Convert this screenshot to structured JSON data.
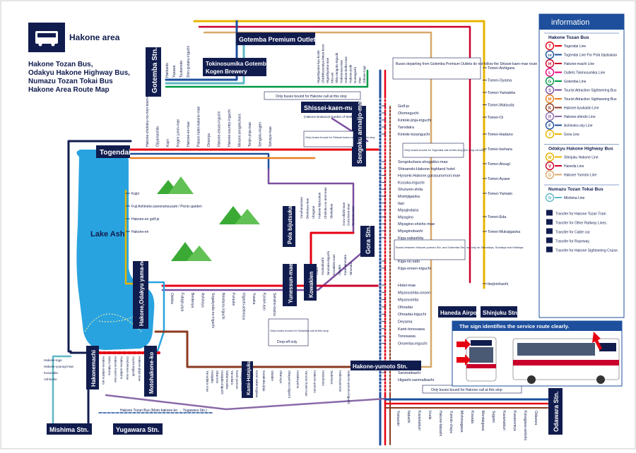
{
  "header": {
    "area_title": "Hakone area",
    "operators": [
      "Hakone Tozan Bus,",
      "Odakyu Hakone Highway Bus,",
      "Numazu Tozan Tokai Bus"
    ],
    "map_title": "Hakone Area Route Map",
    "bus_icon": "bus-icon"
  },
  "hubs": {
    "gotemba": "Gotemba Stn.",
    "premium_outlets": "Gotemba Premium Outlets",
    "tokinosumika": [
      "Tokinosumika Gotemba",
      "Kogen Brewery"
    ],
    "shissei": "Shissei-kaen-mae",
    "shissei_sub": "(Hakone Botanical Garden of Wetlands)",
    "togendai": "Togendai",
    "sengoku": "Sengoku annaijo-mae",
    "pola": "Pola bijutsukan",
    "gora": "Gora Stn.",
    "lake": "Lake Ashi",
    "hakone_odakyu": "Hakone,Odakyu yama-no-hotel",
    "yunessun": "Yunessun-mae",
    "kowakien": "Kowakien",
    "haneda": "Haneda Airport",
    "shinjuku": "Shinjuku Stn.",
    "yumoto": "Hakone-yumoto Stn.",
    "hakonemachi": "Hakonemachi",
    "motohakone": "Motohakone-ko",
    "kami_hatajuku": "Kami-Hatajuku",
    "odawara": "Odawara Stn.",
    "mishima": "Mishima Stn.",
    "yugawara": "Yugawara Stn."
  },
  "stops": {
    "gotemba_branch": [
      "Hakkaido",
      "Yazawa",
      "Tsukamoto",
      "Shin-jyutaku-iriguchi"
    ],
    "togendai_top": [
      "Hakone-chokoku-no-mori-koen-mae",
      "Ojiyamashita",
      "Kojiri",
      "Kogen jumin-mae",
      "Hakone-en-mae",
      "Palace-hotel-hakone-mae",
      "Omoriya",
      "Hakone-choan-iriguchi",
      "Hakone-country-iriguchi",
      "Minami-sengokuhara",
      "Tenjin-jinja-mae",
      "Sengoku-kogen",
      "Sekisyo-mae"
    ],
    "sengoku_top": [
      "Higashiyama-kyu-koshi",
      "Chichibunomiya-kinen-koen",
      "Higashiyama-mae",
      "Kita-aoi",
      "Shin-sengoku-iriguchi",
      "Hakoneasa-mae",
      "Hakone-keiba-mae",
      "Hakone-joshi",
      "Numagachi",
      "Mae",
      "Odome-toge"
    ],
    "sengoku_col": [
      "Golf-jo",
      "Otomeguchi",
      "Kintoki-jinja-iriguchi",
      "Tarodaira",
      "Kintoki-tozanguchi"
    ],
    "sengoku_down": [
      "Sengokuhara-shogakko-mae",
      "Shinanoki-Hakone highland hotel",
      "Hyoseki-Hakone-garasunomori-mae",
      "Kozuka-iriguchi",
      "Shunzen-shita",
      "Momijigaoka",
      "Itari",
      "Miyajindaira",
      "Miyagino",
      "Miyagino-shisho-mae",
      "Miyaginobashi",
      "Kiga-sakashita"
    ],
    "gora_down": [
      "Kiga-no-sato",
      "Kiga-onsen-iriguchi"
    ],
    "yumoto_up": [
      "Hotel-mae",
      "Miyanoshita-onsen",
      "Miyanoshita",
      "Ohiradai",
      "Ohiradai-iriguchi",
      "Deyama",
      "Kami-tonosawa",
      "Tonosawa",
      "Onsenba-iriguchi"
    ],
    "yumoto_down": [
      "Sanmaibashi",
      "Higashi-sanmaibashi"
    ],
    "tomei": [
      "Tomei-Ashigara",
      "Tomei-Oyama",
      "Tomei-Yamakita",
      "Tomei-Matsuda",
      "Tomei-Oi",
      "Tomei-Hadano",
      "Tomei-Isehara",
      "Tomei-Atsugi",
      "Tomei-Ayase",
      "Tomei-Yamato",
      "Tomei-Eda",
      "Tomei-Mukaigaoka",
      "Ikejiriohashi"
    ],
    "lake_west": [
      "Kojiri",
      "Fuji Ashinoko panorama-park / Picnic-garden",
      "Hakone-en golf-jo",
      "Hakone-en"
    ],
    "kowakien_row": [
      "Ohira",
      "Asamabashi",
      "Ninotaira-iriguchi",
      "Kowakien-mae",
      "Oiwake",
      "Kami-ninotaira",
      "Ninotaira"
    ],
    "mid_row": [
      "Oshiba",
      "Futago-jaya",
      "Bentenya",
      "Ashinoyu",
      "Sogakyoda-no-iriguchi",
      "Ninotaira-iriguchi",
      "Furuuke",
      "Higashi-ashinoyu",
      "Yusaka",
      "Kyosei-ayo",
      "Sekisho-kazou"
    ],
    "pola_col": [
      "Yunohanazawa",
      "Bentenya-mae",
      "Ubagatai",
      "Hakone-bijutsukan",
      "Chokoku-no-mori-mae",
      "Shoheikan"
    ],
    "gora_col": [
      "Gora-shishi-mae",
      "Gora-koen-mae",
      "Sounzan-mae"
    ],
    "hakonemachi_up": [
      "Hakone-sekisho-ato",
      "Moto-Hakone",
      "Hakone-hotel-mae",
      "Hakone-sekisho",
      "Onshi-koen-mae",
      "Asami-iriguchi",
      "Hakone-jinja-mae"
    ],
    "hakonemachi_left": [
      "Hakone-toge",
      "Hakone-yourogi-mae",
      "Kusuzaka",
      "Ashinoko"
    ],
    "kami_row": [
      "Yunodaira-mae",
      "Hatajuku",
      "Okamoto",
      "Hatajuku-iriguchi",
      "Sakumanaka",
      "Yunodaira",
      "Kami-yumoto",
      "Hatajuku-chuo",
      "Hatajuku-sakaue",
      "Hakone-yuryo",
      "Kami-sukumogawa"
    ],
    "kami_row2": [
      "Kusukoba-jinja",
      "Oiwake",
      "Okunoyu",
      "Okuyumoto-iriguchi",
      "Hatakeyama",
      "Yumoto-hotel-mae",
      "Hakone-yumoto",
      "Hatsuhana",
      "Sudohara",
      "Hakoneyumoto",
      "Hakone-yumoto-iriguchi"
    ],
    "odawara_row": [
      "Yamazaki",
      "Itabashi",
      "Kazamatsuri",
      "Iriuda",
      "Hakone-itabashi",
      "Yumoto-chaya",
      "Mishimagawa",
      "Kowada",
      "Mandaigawa",
      "Sagami",
      "Kazamatsuri",
      "Kuwanomiya",
      "Kanagawa-sekisho",
      "Odawara"
    ]
  },
  "notes": {
    "outlets": "Buses departing from Gotemba Premium Outlets do not follow the Shissei-kaen-mae route",
    "hakone_bound": "Only buses bound for Hakone call at this stop",
    "shissei_bound": "Only buses bound for Shissei-kaen-mae call at this stop",
    "togendai_dropoff": "Only buses bound for Togendai call at this stop (for drop-off only)",
    "gora_limited": "Buses between Hakone-yumoto Stn. and Gotemba Stn. run only on Saturdays, Sundays and Holidays",
    "odawara_bound": "Only buses bound for Odawara call at this stop",
    "dropoff": "Drop-off only",
    "hakone_bound2": "Only buses bound for Hakone call at this stop",
    "yugawara_bus": "Hakone Tozan Bus (Moto-hakone-ko → Yugawara Stn.)",
    "sign": "The sign identifies the service route clearly."
  },
  "legend": {
    "title": "information",
    "groups": [
      {
        "name": "Hakone Tozan Bus",
        "items": [
          {
            "letter": "T",
            "label": "Togendai Line",
            "color": "#e60012"
          },
          {
            "letter": "TP",
            "label": "Togendai Line For Pola bijutsukan",
            "color": "#1d4f9c"
          },
          {
            "letter": "H",
            "label": "Hakone-machi Line",
            "color": "#c9002b"
          },
          {
            "letter": "L",
            "label": "Outlets Tokinosumika Line",
            "color": "#e4007f"
          },
          {
            "letter": "G",
            "label": "Gotemba Line",
            "color": "#009944"
          },
          {
            "letter": "S",
            "label": "Tourist Attraction Sightseeing Bus",
            "color": "#7a4fa0"
          },
          {
            "letter": "M",
            "label": "Tourist Attraction Sightseeing Bus",
            "color": "#e97f22"
          },
          {
            "letter": "K",
            "label": "Hakone-kyukaido Line",
            "color": "#8b3a1f"
          },
          {
            "letter": "R",
            "label": "Hakone-shindo Line",
            "color": "#8a6aa8"
          },
          {
            "letter": "F",
            "label": "Ashinoko-sky Line",
            "color": "#1d4f9c"
          },
          {
            "letter": "Y",
            "label": "Gora Line",
            "color": "#e8b400"
          }
        ]
      },
      {
        "name": "Odakyu Hakone Highway Bus",
        "items": [
          {
            "letter": "W",
            "label": "Shinjuku Hakone Line",
            "color": "#e8b400"
          },
          {
            "letter": "V",
            "label": "Haneda Line",
            "color": "#c9002b"
          },
          {
            "letter": "D",
            "label": "Hakone Yumoto Line",
            "color": "#d9a869"
          }
        ]
      },
      {
        "name": "Numazu Tozan Tokai Bus",
        "items": [
          {
            "letter": "N",
            "label": "Mishima Line",
            "color": "#5fb8c4"
          }
        ]
      }
    ],
    "transfers": [
      "Transfer for Hakone Tozan Train.",
      "Transfer for Other Railway Lines.",
      "Transfer for Cable car.",
      "Transfer for Ropeway.",
      "Transfer for Hakone Sightseeing Cruise."
    ]
  },
  "colors": {
    "navy": "#111c4e",
    "lake": "#29a3e0",
    "gotemba_line": "#009944",
    "togendai_line": "#e60012",
    "sightseeing_orange": "#e97f22",
    "gora_yellow": "#e8b400"
  }
}
